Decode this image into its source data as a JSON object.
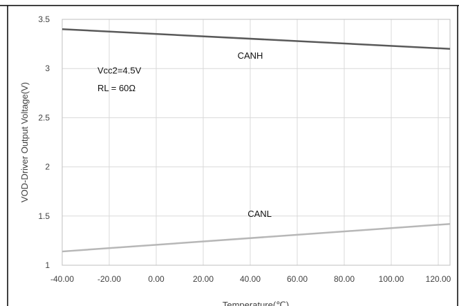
{
  "chart_data": {
    "type": "line",
    "title": "",
    "xlabel": "Temperature(℃)",
    "ylabel": "VOD-Driver Output Voltage(V)",
    "xlim": [
      -40,
      125
    ],
    "ylim": [
      1,
      3.5
    ],
    "x_ticks": [
      "-40.00",
      "-20.00",
      "0.00",
      "20.00",
      "40.00",
      "60.00",
      "80.00",
      "100.00",
      "120.00"
    ],
    "y_ticks": [
      "1",
      "1.5",
      "2",
      "2.5",
      "3",
      "3.5"
    ],
    "grid": true,
    "legend": "none",
    "series": [
      {
        "name": "CANH",
        "x": [
          -40,
          125
        ],
        "y": [
          3.4,
          3.2
        ],
        "color": "#595959"
      },
      {
        "name": "CANL",
        "x": [
          -40,
          125
        ],
        "y": [
          1.14,
          1.42
        ],
        "color": "#b7b7b7"
      }
    ],
    "annotations": [
      {
        "text": "Vcc2=4.5V",
        "x": -25,
        "y": 2.95
      },
      {
        "text": "RL = 60Ω",
        "x": -25,
        "y": 2.77
      }
    ]
  }
}
